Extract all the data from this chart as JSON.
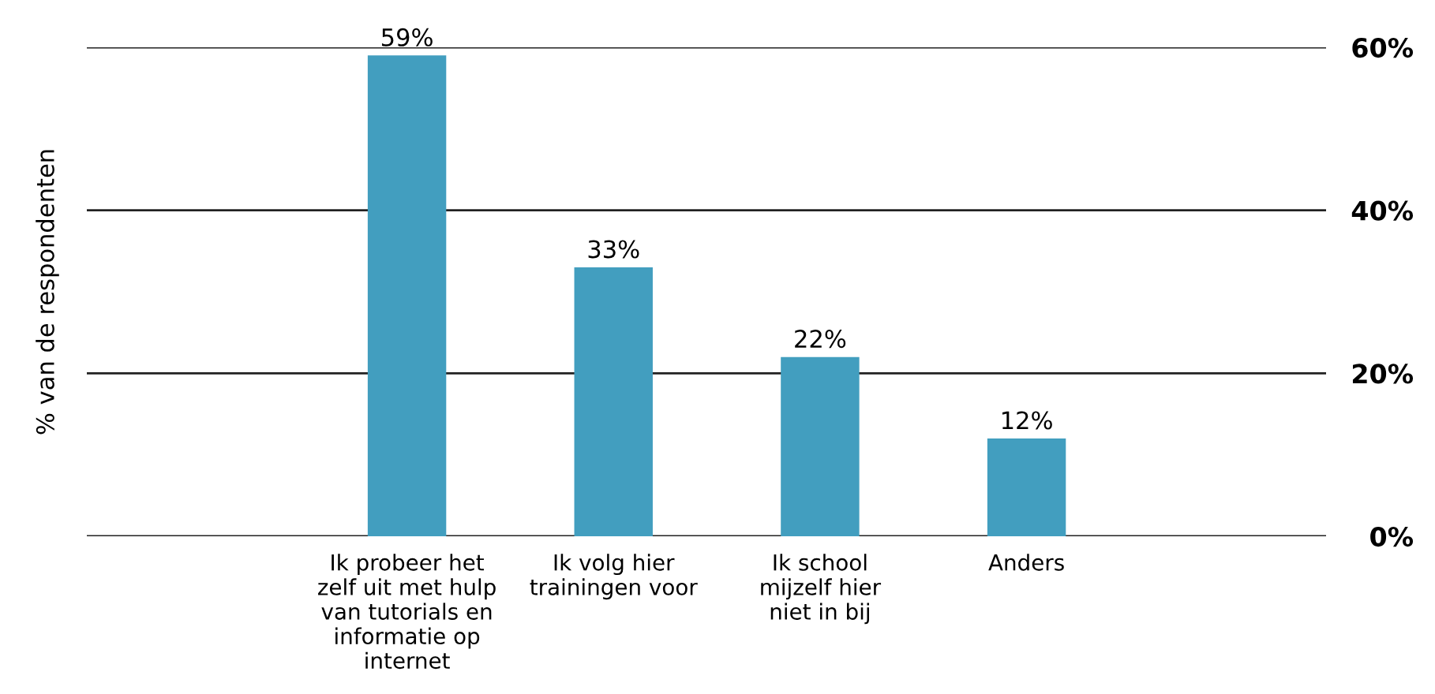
{
  "chart_data": {
    "type": "bar",
    "annotations": [
      "% van de respondenten"
    ],
    "categories": [
      "Ik probeer het\nzelf uit met hulp\nvan tutorials en\ninformatie op\ninternet",
      "Ik volg hier\ntrainingen voor",
      "Ik school\nmijzelf hier\nniet in bij",
      "Anders"
    ],
    "values": [
      59,
      33,
      22,
      12
    ],
    "color": "#429ebf",
    "value_labels": [
      "59%",
      "33%",
      "22%",
      "12%"
    ],
    "ylim": [
      0,
      60
    ],
    "yticks": [
      {
        "value": 0,
        "label": "0%"
      },
      {
        "value": 20,
        "label": "20%"
      },
      {
        "value": 40,
        "label": "40%"
      },
      {
        "value": 60,
        "label": "60%"
      }
    ],
    "grid": "y",
    "legend": false
  }
}
